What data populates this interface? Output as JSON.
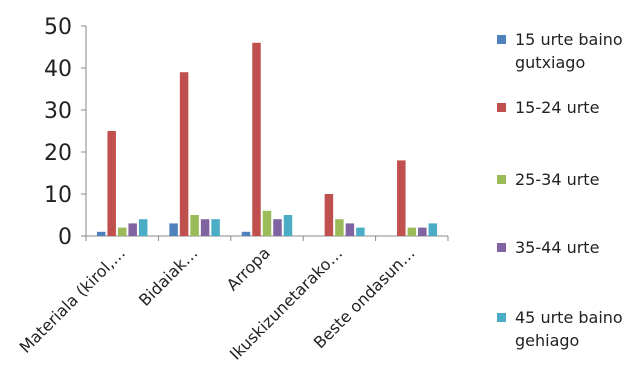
{
  "chart_data": {
    "type": "bar",
    "categories": [
      "Materiala (kirol,…",
      "Bidaiak…",
      "Arropa",
      "Ikuskizunetarako…",
      "Beste ondasun…"
    ],
    "series": [
      {
        "name": "15 urte baino gutxiago",
        "color": "#4f81bd",
        "values": [
          1,
          3,
          1,
          0,
          0
        ]
      },
      {
        "name": "15-24 urte",
        "color": "#c0504d",
        "values": [
          25,
          39,
          46,
          10,
          18
        ]
      },
      {
        "name": "25-34 urte",
        "color": "#9bbb59",
        "values": [
          2,
          5,
          6,
          4,
          2
        ]
      },
      {
        "name": "35-44 urte",
        "color": "#8064a2",
        "values": [
          3,
          4,
          4,
          3,
          2
        ]
      },
      {
        "name": "45 urte baino gehiago",
        "color": "#4bacc6",
        "values": [
          4,
          4,
          5,
          2,
          3
        ]
      }
    ],
    "legend_lines": [
      [
        "15 urte baino",
        "gutxiago"
      ],
      [
        "15-24 urte"
      ],
      [
        "25-34 urte"
      ],
      [
        "35-44 urte"
      ],
      [
        "45 urte baino",
        "gehiago"
      ]
    ],
    "yticks": [
      "0",
      "10",
      "20",
      "30",
      "40",
      "50"
    ],
    "ylim": [
      0,
      50
    ],
    "grid": false,
    "legend_position": "right",
    "title": "",
    "xlabel": "",
    "ylabel": ""
  }
}
